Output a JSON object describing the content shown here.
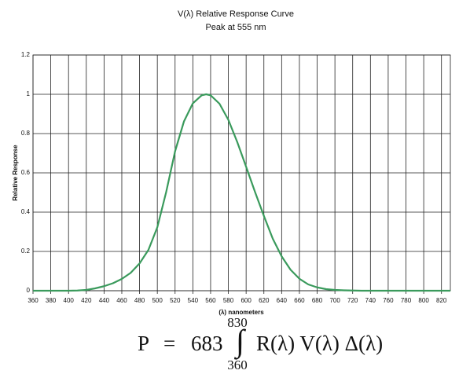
{
  "chart_data": {
    "type": "line",
    "title": "V(λ) Relative Response Curve",
    "subtitle": "Peak at 555 nm",
    "xlabel": "(λ) nanometers",
    "ylabel": "Relative Response",
    "x": [
      360,
      370,
      380,
      390,
      400,
      410,
      420,
      430,
      440,
      450,
      460,
      470,
      480,
      490,
      500,
      510,
      520,
      530,
      540,
      550,
      555,
      560,
      570,
      580,
      590,
      600,
      610,
      620,
      630,
      640,
      650,
      660,
      670,
      680,
      690,
      700,
      710,
      720,
      730,
      740,
      750,
      760,
      770,
      780,
      790,
      800,
      810,
      820,
      830
    ],
    "series": [
      {
        "color": "#3a9a5c",
        "values": [
          0,
          0,
          0,
          0,
          0,
          0.001,
          0.004,
          0.012,
          0.023,
          0.038,
          0.06,
          0.091,
          0.139,
          0.208,
          0.323,
          0.503,
          0.71,
          0.862,
          0.954,
          0.995,
          1.0,
          0.995,
          0.952,
          0.87,
          0.757,
          0.631,
          0.503,
          0.381,
          0.265,
          0.175,
          0.107,
          0.061,
          0.032,
          0.017,
          0.008,
          0.004,
          0.002,
          0.001,
          0,
          0,
          0,
          0,
          0,
          0,
          0,
          0,
          0,
          0,
          0
        ]
      }
    ],
    "xlim": [
      360,
      830
    ],
    "ylim": [
      0,
      1.2
    ],
    "xticks": [
      360,
      380,
      400,
      420,
      440,
      460,
      480,
      500,
      520,
      540,
      560,
      580,
      600,
      620,
      640,
      660,
      680,
      700,
      720,
      740,
      760,
      780,
      800,
      820
    ],
    "yticks": [
      0,
      0.2,
      0.4,
      0.6,
      0.8,
      1,
      1.2
    ],
    "grid": true
  },
  "formula": {
    "lhs": "P",
    "equals": "=",
    "coefficient": "683",
    "integral": "∫",
    "upper": "830",
    "lower": "360",
    "integrand": "R(λ) V(λ) Δ(λ)"
  }
}
